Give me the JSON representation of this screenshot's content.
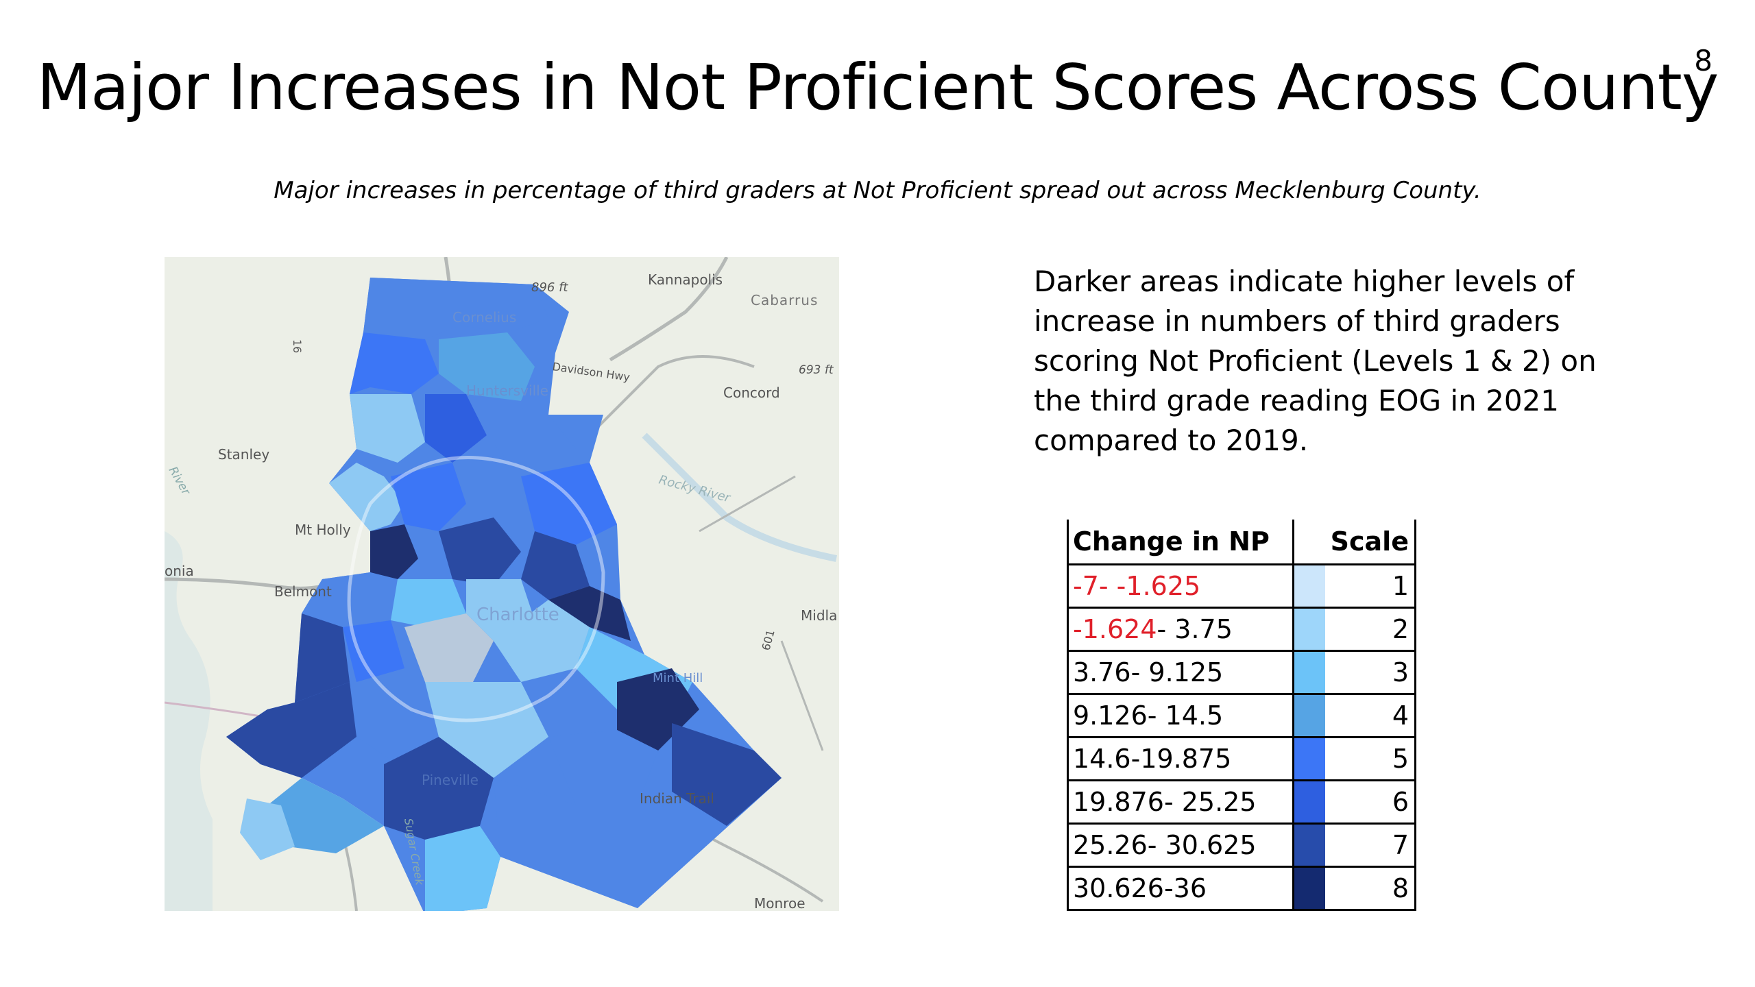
{
  "page_number": "8",
  "title": "Major Increases in Not Proficient Scores Across County",
  "subtitle": "Major increases in percentage of third graders at Not Proficient spread out across Mecklenburg County.",
  "description_lines": [
    "Darker areas indicate higher levels of",
    "increase in numbers of third graders",
    "scoring Not Proficient (Levels 1 & 2) on",
    "the third grade reading EOG in 2021",
    "compared to 2019."
  ],
  "legend": {
    "headers": {
      "range": "Change in NP",
      "scale": "Scale"
    },
    "rows": [
      {
        "range_red": "-7- -1.625",
        "range_black": "",
        "scale": "1",
        "color": "#cce6fb"
      },
      {
        "range_red": "-1.624",
        "range_black": "- 3.75",
        "scale": "2",
        "color": "#9ed6fa"
      },
      {
        "range_red": "",
        "range_black": "3.76- 9.125",
        "scale": "3",
        "color": "#6cc3f8"
      },
      {
        "range_red": "",
        "range_black": "9.126- 14.5",
        "scale": "4",
        "color": "#56a4e4"
      },
      {
        "range_red": "",
        "range_black": "14.6-19.875",
        "scale": "5",
        "color": "#3c76f6"
      },
      {
        "range_red": "",
        "range_black": "19.876- 25.25",
        "scale": "6",
        "color": "#2e5fe0"
      },
      {
        "range_red": "",
        "range_black": "25.26- 30.625",
        "scale": "7",
        "color": "#274cab"
      },
      {
        "range_red": "",
        "range_black": "30.626-36",
        "scale": "8",
        "color": "#142a70"
      }
    ]
  },
  "map": {
    "place_labels": {
      "kannapolis": "Kannapolis",
      "cabarrus": "Cabarrus",
      "concord": "Concord",
      "stanley": "Stanley",
      "belmont": "Belmont",
      "mtholly": "Mt Holly",
      "charlotte": "Charlotte",
      "huntersville": "Huntersville",
      "cornelius": "Cornelius",
      "davidson_hwy": "Davidson Hwy",
      "rocky_river": "Rocky River",
      "mint_hill": "Mint Hill",
      "midland": "Midla",
      "indian_trail": "Indian Trail",
      "pineville": "Pineville",
      "monroe": "Monroe",
      "gastonia": "onia",
      "elev_896": "896 ft",
      "elev_693": "693 ft",
      "hwy_16": "16",
      "hwy_601": "601",
      "river_left": "River",
      "sugar_creek": "Sugar Creek"
    },
    "colors": {
      "basemap": "#ecefe7",
      "water": "#c7dce6",
      "road": "#b4b8b6",
      "county_light": "#8ec9f3",
      "county_mid": "#4f86e6",
      "county_dark": "#2a4aa2",
      "county_darkest": "#1e2f6e",
      "downtown": "#b8c9dc"
    }
  }
}
